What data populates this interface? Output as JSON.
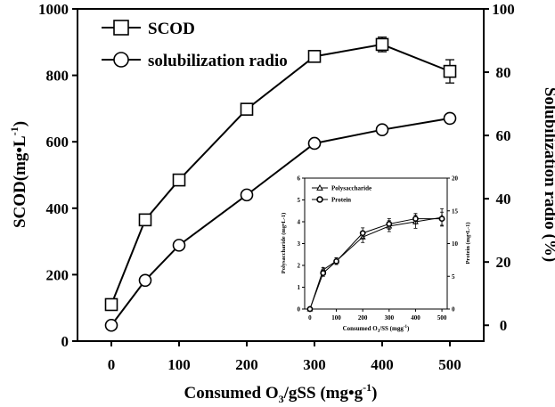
{
  "chart_data": [
    {
      "type": "line",
      "x": [
        0,
        50,
        100,
        200,
        300,
        400,
        500
      ],
      "xlabel": "Consumed O3/gSS (mg•g-1)",
      "xlabel_parts": {
        "pre": "Consumed O",
        "sub": "3",
        "mid": "/gSS (mg•g",
        "sup": "-1",
        "post": ")"
      },
      "ylabel": "SCOD(mg•L-1)",
      "ylabel_parts": {
        "pre": "SCOD(mg•L",
        "sup": "-1",
        "post": ")"
      },
      "y2label": "Solubilization radio (%)",
      "xlim": [
        -50,
        550
      ],
      "ylim": [
        0,
        1000
      ],
      "y2lim": [
        -5,
        100
      ],
      "xticks": [
        "0",
        "100",
        "200",
        "300",
        "400",
        "500"
      ],
      "yticks": [
        "0",
        "200",
        "400",
        "600",
        "800",
        "1000"
      ],
      "y2ticks": [
        "0",
        "20",
        "40",
        "60",
        "80",
        "100"
      ],
      "series": [
        {
          "name": "SCOD",
          "axis": "left",
          "marker": "square",
          "values": [
            110,
            365,
            485,
            698,
            857,
            893,
            812
          ],
          "errors": [
            10,
            12,
            12,
            15,
            10,
            22,
            35
          ]
        },
        {
          "name": "solubilization radio",
          "axis": "right",
          "marker": "circle",
          "values": [
            0,
            14.2,
            25.3,
            41.2,
            57.5,
            61.8,
            65.4
          ],
          "errors": [
            0.5,
            1.2,
            1.0,
            1.2,
            0.8,
            1.0,
            1.0
          ]
        }
      ],
      "legend": "top-left"
    },
    {
      "type": "line",
      "inset": true,
      "x": [
        0,
        50,
        100,
        200,
        300,
        400,
        500
      ],
      "xlabel": "Consumed O3/SS (mgg-1)",
      "xlabel_parts": {
        "pre": "Consumed O",
        "sub": "3",
        "mid": "/SS (mgg",
        "sup": "-1",
        "post": ")"
      },
      "ylabel": "Polysaccharide (mg•L-1)",
      "y2label": "Protein (mg•L-1)",
      "ylim": [
        0,
        6
      ],
      "y2lim": [
        0,
        20
      ],
      "xticks": [
        "0",
        "100",
        "200",
        "300",
        "400",
        "500"
      ],
      "yticks": [
        "0",
        "1",
        "2",
        "3",
        "4",
        "5",
        "6"
      ],
      "y2ticks": [
        "0",
        "5",
        "10",
        "15",
        "20"
      ],
      "series": [
        {
          "name": "Polysaccharide",
          "axis": "left",
          "marker": "triangle",
          "values": [
            0,
            1.8,
            2.2,
            3.3,
            3.8,
            4.0,
            4.2
          ],
          "errors": [
            0.05,
            0.1,
            0.15,
            0.25,
            0.25,
            0.3,
            0.4
          ]
        },
        {
          "name": "Protein",
          "axis": "right",
          "marker": "circle",
          "values": [
            0,
            5.5,
            7.3,
            11.6,
            13.0,
            13.8,
            13.8
          ],
          "errors": [
            0.2,
            0.5,
            0.5,
            0.8,
            0.8,
            0.8,
            1.0
          ]
        }
      ],
      "legend": "top-left"
    }
  ]
}
